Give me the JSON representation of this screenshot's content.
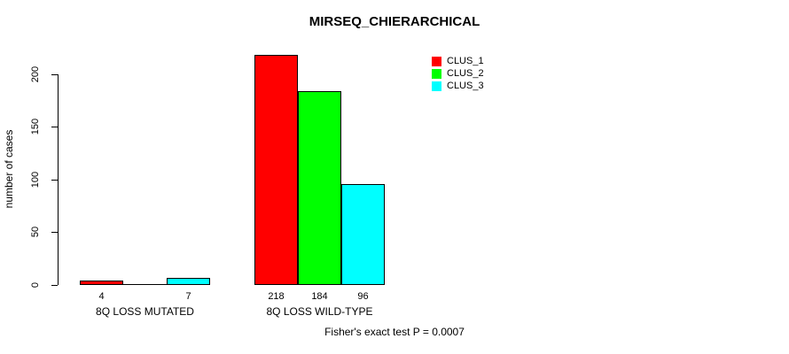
{
  "chart_data": {
    "type": "bar",
    "title": "MIRSEQ_CHIERARCHICAL",
    "xlabel": "",
    "ylabel": "number of cases",
    "categories": [
      "8Q LOSS MUTATED",
      "8Q LOSS WILD-TYPE"
    ],
    "series": [
      {
        "name": "CLUS_1",
        "color": "#ff0000",
        "values": [
          4,
          218
        ]
      },
      {
        "name": "CLUS_2",
        "color": "#00ff00",
        "values": [
          0,
          184
        ]
      },
      {
        "name": "CLUS_3",
        "color": "#00ffff",
        "values": [
          7,
          96
        ]
      }
    ],
    "bar_value_labels": [
      [
        "4",
        "",
        "7"
      ],
      [
        "218",
        "184",
        "96"
      ]
    ],
    "yticks": [
      0,
      50,
      100,
      150,
      200
    ],
    "ylim": [
      0,
      220
    ],
    "grid": false,
    "legend_position": "top-right",
    "annotation": "Fisher's exact test P = 0.0007"
  },
  "legend": {
    "items": [
      {
        "label": "CLUS_1",
        "color": "#ff0000"
      },
      {
        "label": "CLUS_2",
        "color": "#00ff00"
      },
      {
        "label": "CLUS_3",
        "color": "#00ffff"
      }
    ]
  }
}
